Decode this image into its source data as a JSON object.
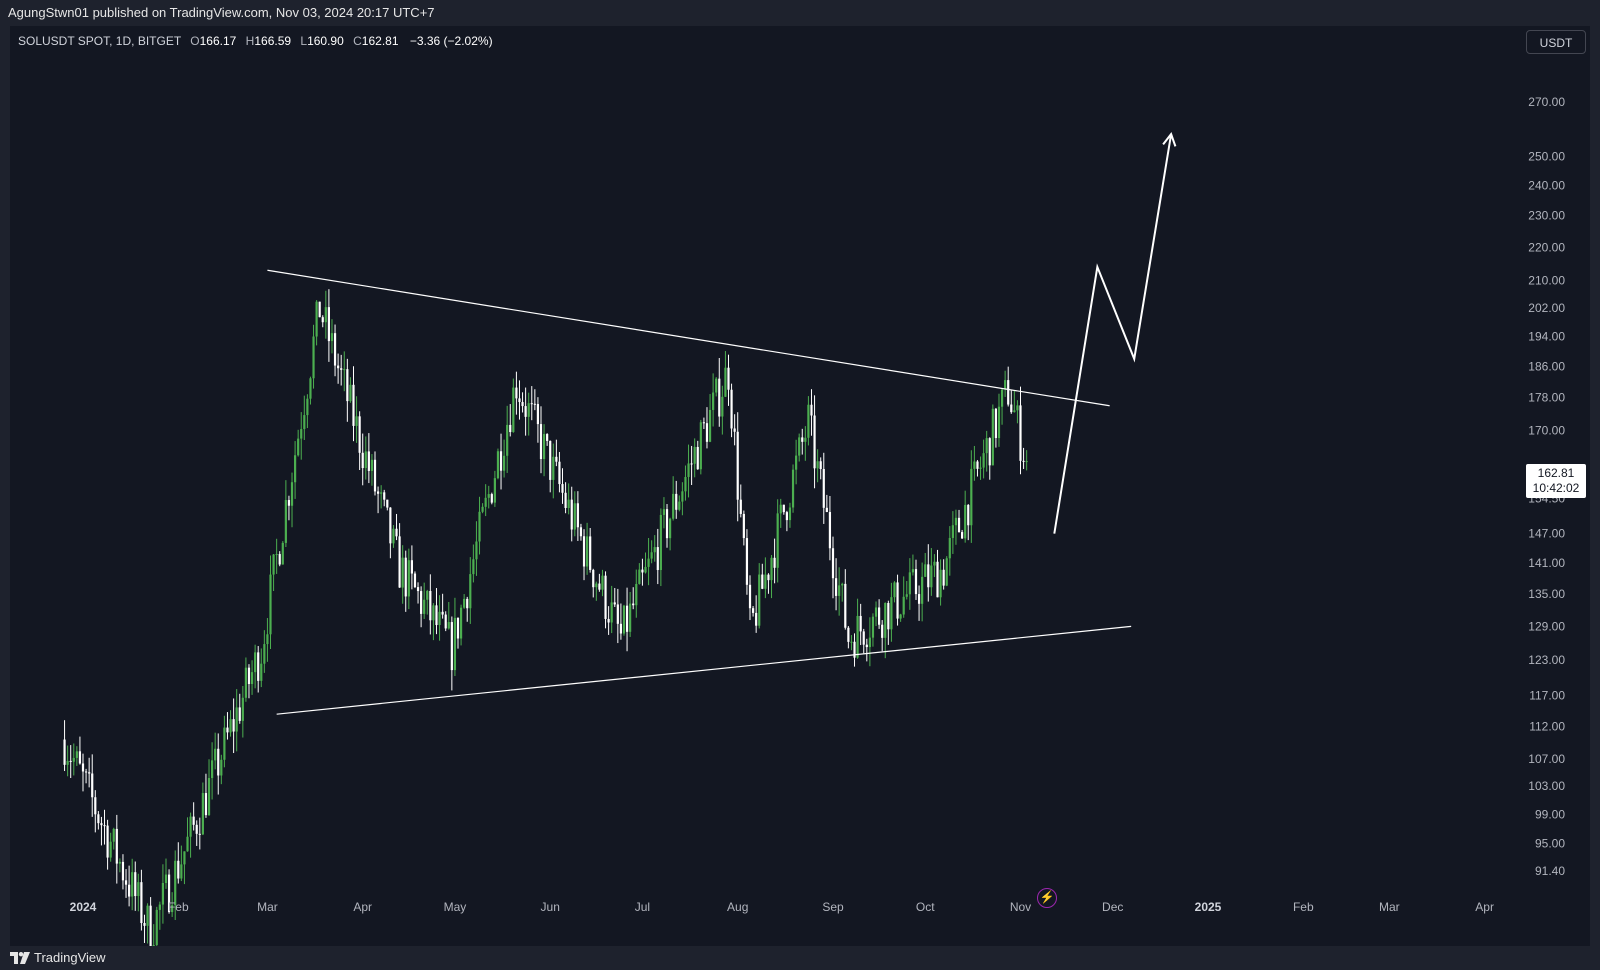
{
  "publisher_line": "AgungStwn01 published on TradingView.com, Nov 03, 2024 20:17 UTC+7",
  "symbol_info": "SOLUSDT SPOT, 1D, BITGET",
  "ohlc": {
    "o_label": "O",
    "o_value": "166.17",
    "h_label": "H",
    "h_value": "166.59",
    "l_label": "L",
    "l_value": "160.90",
    "c_label": "C",
    "c_value": "162.81",
    "change": "−3.36 (−2.02%)"
  },
  "currency": "USDT",
  "last_price": {
    "price": "162.81",
    "countdown": "10:42:02"
  },
  "brand": "TradingView",
  "icons": {
    "flash": "lightning-icon",
    "logo": "tradingview-logo-icon"
  },
  "colors": {
    "up": "#4caf50",
    "down": "#ffffff",
    "background": "#131722",
    "drawing": "#ffffff"
  },
  "chart_data": {
    "type": "candlestick",
    "symbol": "SOLUSDT",
    "timeframe": "1D",
    "price_scale": "log",
    "y_ticks": [
      270.0,
      250.0,
      240.0,
      230.0,
      220.0,
      210.0,
      202.0,
      194.0,
      186.0,
      178.0,
      170.0,
      162.81,
      154.5,
      147.0,
      141.0,
      135.0,
      129.0,
      123.0,
      117.0,
      112.0,
      107.0,
      103.0,
      99.0,
      95.0,
      91.4
    ],
    "y_tick_labels": [
      "270.00",
      "250.00",
      "240.00",
      "230.00",
      "220.00",
      "210.00",
      "202.00",
      "194.00",
      "186.00",
      "178.00",
      "170.00",
      "",
      "154.50",
      "147.00",
      "141.00",
      "135.00",
      "129.00",
      "123.00",
      "117.00",
      "112.00",
      "107.00",
      "103.00",
      "99.00",
      "95.00",
      "91.40"
    ],
    "x_ticks": [
      "2024",
      "Feb",
      "Mar",
      "Apr",
      "May",
      "Jun",
      "Jul",
      "Aug",
      "Sep",
      "Oct",
      "Nov",
      "Dec",
      "2025",
      "Feb",
      "Mar",
      "Apr"
    ],
    "x_ticks_bold": [
      "2024",
      "2025"
    ],
    "key_points": [
      {
        "date": "2023-12-26",
        "close": 110.0
      },
      {
        "date": "2024-01-23",
        "close": 84.0
      },
      {
        "date": "2024-02-05",
        "close": 96.0
      },
      {
        "date": "2024-02-28",
        "close": 125.0
      },
      {
        "date": "2024-03-18",
        "close": 202.0
      },
      {
        "date": "2024-04-13",
        "close": 140.0
      },
      {
        "date": "2024-04-30",
        "close": 125.0
      },
      {
        "date": "2024-05-21",
        "close": 182.0
      },
      {
        "date": "2024-06-24",
        "close": 127.0
      },
      {
        "date": "2024-07-29",
        "close": 185.0
      },
      {
        "date": "2024-08-05",
        "close": 128.0
      },
      {
        "date": "2024-08-24",
        "close": 172.0
      },
      {
        "date": "2024-09-06",
        "close": 127.0
      },
      {
        "date": "2024-10-07",
        "close": 140.0
      },
      {
        "date": "2024-10-28",
        "close": 180.0
      },
      {
        "date": "2024-11-03",
        "close": 162.81
      }
    ],
    "drawings": {
      "upper_trendline": [
        {
          "date": "2024-03-01",
          "price": 213.0
        },
        {
          "date": "2024-11-30",
          "price": 176.0
        }
      ],
      "lower_trendline": [
        {
          "date": "2024-03-04",
          "price": 114.0
        },
        {
          "date": "2024-12-07",
          "price": 129.0
        }
      ],
      "projection_path": [
        {
          "date": "2024-11-12",
          "price": 147.0
        },
        {
          "date": "2024-11-26",
          "price": 214.0
        },
        {
          "date": "2024-12-08",
          "price": 188.0
        },
        {
          "date": "2024-12-20",
          "price": 258.0
        }
      ]
    }
  }
}
